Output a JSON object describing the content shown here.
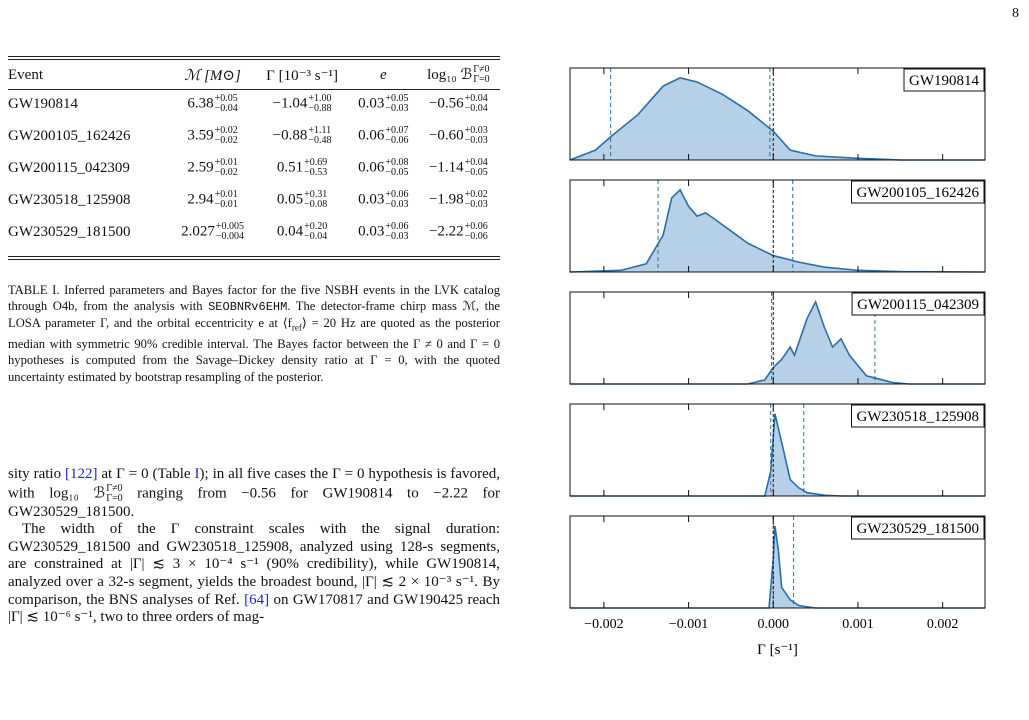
{
  "page_number": "8",
  "table": {
    "header": [
      "Event",
      "ℳ [M⊙]",
      "Γ [10⁻³ s⁻¹]",
      "e",
      {
        "main": "log₁₀ ℬ",
        "sup": "Γ≠0",
        "sub": "Γ=0"
      }
    ],
    "rows": [
      [
        "GW190814",
        {
          "median": "6.38",
          "plus": "+0.05",
          "minus": "−0.04"
        },
        {
          "median": "−1.04",
          "plus": "+1.00",
          "minus": "−0.88"
        },
        {
          "median": "0.03",
          "plus": "+0.05",
          "minus": "−0.03"
        },
        {
          "median": "−0.56",
          "plus": "+0.04",
          "minus": "−0.04"
        }
      ],
      [
        "GW200105_162426",
        {
          "median": "3.59",
          "plus": "+0.02",
          "minus": "−0.02"
        },
        {
          "median": "−0.88",
          "plus": "+1.11",
          "minus": "−0.48"
        },
        {
          "median": "0.06",
          "plus": "+0.07",
          "minus": "−0.06"
        },
        {
          "median": "−0.60",
          "plus": "+0.03",
          "minus": "−0.03"
        }
      ],
      [
        "GW200115_042309",
        {
          "median": "2.59",
          "plus": "+0.01",
          "minus": "−0.02"
        },
        {
          "median": "0.51",
          "plus": "+0.69",
          "minus": "−0.53"
        },
        {
          "median": "0.06",
          "plus": "+0.08",
          "minus": "−0.05"
        },
        {
          "median": "−1.14",
          "plus": "+0.04",
          "minus": "−0.05"
        }
      ],
      [
        "GW230518_125908",
        {
          "median": "2.94",
          "plus": "+0.01",
          "minus": "−0.01"
        },
        {
          "median": "0.05",
          "plus": "+0.31",
          "minus": "−0.08"
        },
        {
          "median": "0.03",
          "plus": "+0.06",
          "minus": "−0.03"
        },
        {
          "median": "−1.98",
          "plus": "+0.02",
          "minus": "−0.03"
        }
      ],
      [
        "GW230529_181500",
        {
          "median": "2.027",
          "plus": "+0.005",
          "minus": "−0.004"
        },
        {
          "median": "0.04",
          "plus": "+0.20",
          "minus": "−0.04"
        },
        {
          "median": "0.03",
          "plus": "+0.06",
          "minus": "−0.03"
        },
        {
          "median": "−2.22",
          "plus": "+0.06",
          "minus": "−0.06"
        }
      ]
    ]
  },
  "caption": [
    "TABLE I. Inferred parameters and Bayes factor for the five NSBH events in the LVK catalog through O4b, from the analysis with ",
    "SEOBNRv6EHM",
    ". The detector-frame chirp mass ℳ, the LOSA parameter Γ, and the orbital eccentricity e at ⟨f",
    "ref",
    "⟩ = 20 Hz are quoted as the posterior median with symmetric 90% credible interval. The Bayes factor between the Γ ≠ 0 and Γ = 0 hypotheses is computed from the Savage–Dickey density ratio at Γ = 0, with the quoted uncertainty estimated by bootstrap resampling of the posterior."
  ],
  "body": [
    [
      "sity ratio ",
      "[122]",
      " at Γ = 0 (Table ",
      "I",
      "); in all five cases the Γ = 0 hypothesis is favored, with log₁₀ ℬ",
      "Γ≠0",
      "Γ=0",
      " ranging from −0.56 for GW190814 to −2.22 for GW230529_181500."
    ],
    [
      "The width of the Γ constraint scales with the signal duration: GW230529_181500 and GW230518_125908, analyzed using 128-s segments, are constrained at |Γ| ≲ 3 × 10⁻⁴ s⁻¹ (90% credibility), while GW190814, analyzed over a 32-s segment, yields the broadest bound, |Γ| ≲ 2 × 10⁻³ s⁻¹. By comparison, the BNS analyses of Ref. ",
      "[64]",
      " on GW170817 and GW190425 reach |Γ| ≲ 10⁻⁶ s⁻¹, two to three orders of mag-"
    ]
  ],
  "chart_data": {
    "type": "density",
    "xlabel": "Γ [s⁻¹]",
    "xlim": [
      -0.0024,
      0.0025
    ],
    "xticks": [
      {
        "value": -0.002,
        "label": "−0.002"
      },
      {
        "value": -0.001,
        "label": "−0.001"
      },
      {
        "value": 0,
        "label": "0.000"
      },
      0.001,
      0.002
    ],
    "ylim": [
      0,
      1.12
    ],
    "reference": 0,
    "color": "#2b6ea6",
    "fill_color": "#a9c8e3",
    "reference_color": "#111111",
    "series": [
      {
        "name": "GW190814",
        "interval": [
          -0.00192,
          -4e-05
        ],
        "x": [
          -0.0024,
          -0.0021,
          -0.0019,
          -0.0016,
          -0.0013,
          -0.0011,
          -0.0009,
          -0.0006,
          -0.0003,
          0,
          0.0002,
          0.0005,
          0.001,
          0.0015,
          0.0025
        ],
        "values": [
          0,
          0.12,
          0.3,
          0.55,
          0.9,
          1.0,
          0.95,
          0.8,
          0.6,
          0.35,
          0.12,
          0.05,
          0.02,
          0,
          0
        ]
      },
      {
        "name": "GW200105_162426",
        "interval": [
          -0.00136,
          0.00023
        ],
        "x": [
          -0.0024,
          -0.0018,
          -0.0015,
          -0.0013,
          -0.0012,
          -0.0011,
          -0.001,
          -0.0009,
          -0.0008,
          -0.0007,
          -0.0005,
          -0.0003,
          0,
          0.0003,
          0.0006,
          0.001,
          0.0015,
          0.0025
        ],
        "values": [
          0,
          0.02,
          0.1,
          0.45,
          0.9,
          1.0,
          0.8,
          0.68,
          0.72,
          0.65,
          0.5,
          0.35,
          0.2,
          0.12,
          0.06,
          0.02,
          0.005,
          0
        ]
      },
      {
        "name": "GW200115_042309",
        "interval": [
          -2e-05,
          0.0012
        ],
        "x": [
          -0.0024,
          -0.0003,
          -0.0001,
          0,
          0.0001,
          0.0002,
          0.00025,
          0.0003,
          0.0004,
          0.0005,
          0.0006,
          0.0007,
          0.0008,
          0.0009,
          0.0011,
          0.0014,
          0.0016,
          0.0025
        ],
        "values": [
          0,
          0,
          0.05,
          0.2,
          0.3,
          0.45,
          0.35,
          0.5,
          0.8,
          1.0,
          0.7,
          0.45,
          0.55,
          0.35,
          0.1,
          0.02,
          0,
          0
        ]
      },
      {
        "name": "GW230518_125908",
        "interval": [
          -3e-05,
          0.00036
        ],
        "x": [
          -0.0024,
          -0.0001,
          -3e-05,
          2e-05,
          0.0001,
          0.0002,
          0.0003,
          0.0004,
          0.0006,
          0.0008,
          0.0025
        ],
        "values": [
          0,
          0,
          0.3,
          1.0,
          0.65,
          0.2,
          0.1,
          0.04,
          0.01,
          0,
          0
        ]
      },
      {
        "name": "GW230529_181500",
        "interval": [
          0,
          0.00024
        ],
        "x": [
          -0.0024,
          -5e-05,
          0,
          2e-05,
          6e-05,
          0.0001,
          0.0002,
          0.0003,
          0.0005,
          0.0025
        ],
        "values": [
          0,
          0,
          0.6,
          1.0,
          0.7,
          0.25,
          0.1,
          0.03,
          0,
          0
        ]
      }
    ]
  }
}
